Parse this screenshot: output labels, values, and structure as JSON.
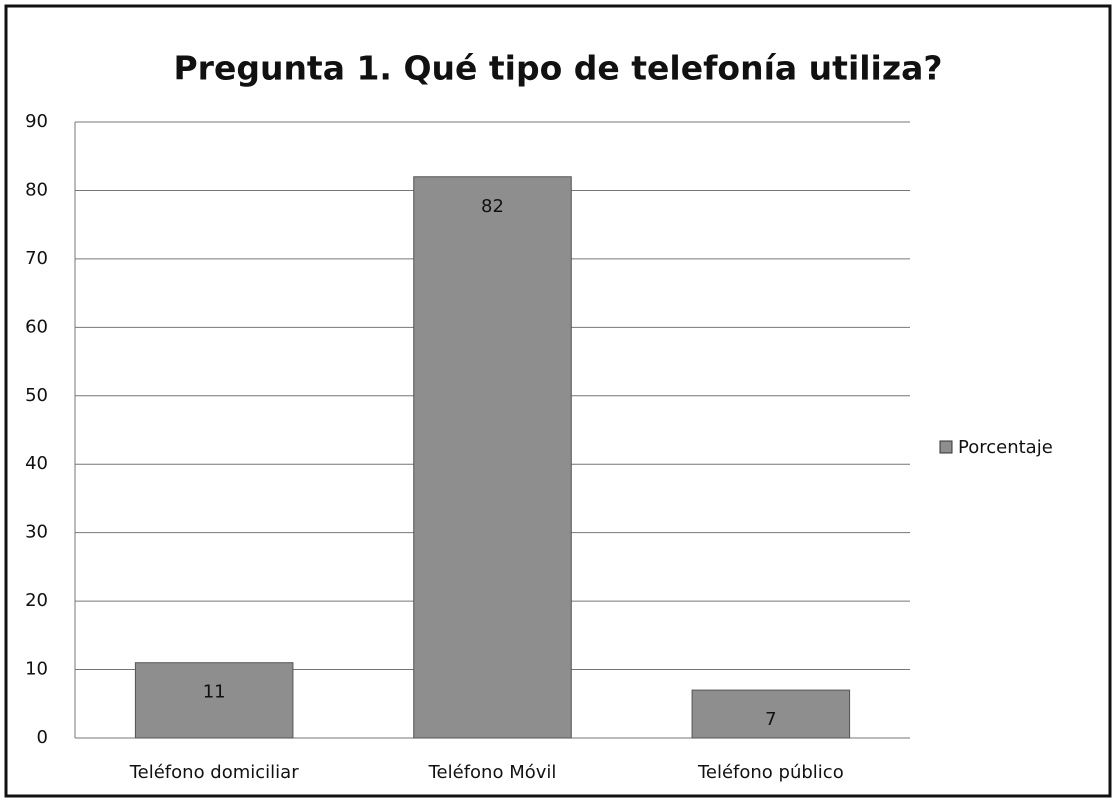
{
  "chart_data": {
    "type": "bar",
    "title": "Pregunta 1.  Qué tipo de telefonía utiliza?",
    "categories": [
      "Teléfono domiciliar",
      "Teléfono Móvil",
      "Teléfono público"
    ],
    "series": [
      {
        "name": "Porcentaje",
        "color": "#8e8e8e",
        "values": [
          11,
          82,
          7
        ]
      }
    ],
    "ylim": [
      0,
      90
    ],
    "yticks": [
      0,
      10,
      20,
      30,
      40,
      50,
      60,
      70,
      80,
      90
    ],
    "grid": true,
    "legend": "right"
  }
}
